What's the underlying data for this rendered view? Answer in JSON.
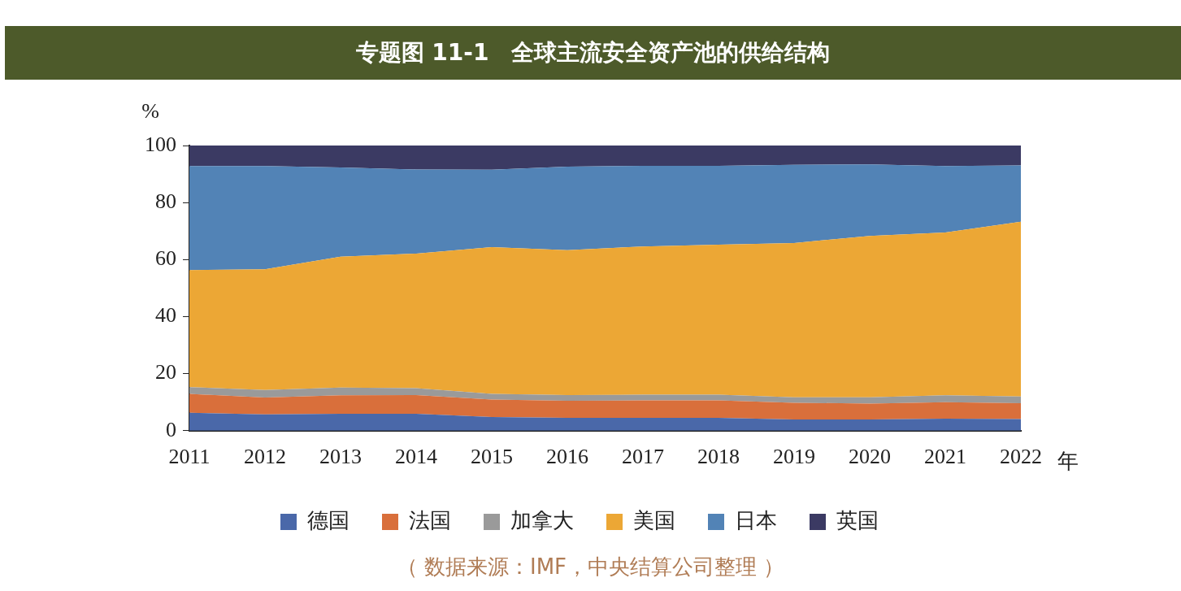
{
  "chart_data": {
    "type": "area",
    "title": "专题图 11-1　全球主流安全资产池的供给结构",
    "ylabel": "%",
    "xlabel": "年",
    "categories": [
      "2011",
      "2012",
      "2013",
      "2014",
      "2015",
      "2016",
      "2017",
      "2018",
      "2019",
      "2020",
      "2021",
      "2022"
    ],
    "stacked": true,
    "ylim": [
      0,
      100
    ],
    "yticks": [
      0,
      20,
      40,
      60,
      80,
      100
    ],
    "grid": false,
    "legend": "bottom",
    "series": [
      {
        "name": "德国",
        "color": "#4a68a9",
        "values": [
          6.3,
          5.7,
          5.9,
          5.9,
          4.8,
          4.5,
          4.5,
          4.5,
          3.9,
          3.9,
          4.2,
          4.1
        ]
      },
      {
        "name": "法国",
        "color": "#d96f3b",
        "values": [
          6.6,
          5.9,
          6.5,
          6.6,
          6.1,
          6.0,
          6.1,
          6.1,
          5.9,
          5.6,
          5.8,
          5.5
        ]
      },
      {
        "name": "加拿大",
        "color": "#9a9a9a",
        "values": [
          2.4,
          2.7,
          2.7,
          2.4,
          2.0,
          2.0,
          2.0,
          2.0,
          1.9,
          2.2,
          2.4,
          2.4
        ]
      },
      {
        "name": "美国",
        "color": "#eca735",
        "values": [
          41.0,
          42.3,
          45.9,
          47.2,
          51.5,
          50.8,
          52.0,
          52.6,
          54.1,
          56.6,
          57.1,
          61.3
        ]
      },
      {
        "name": "日本",
        "color": "#5283b6",
        "values": [
          36.5,
          36.2,
          31.3,
          29.5,
          27.1,
          29.3,
          28.3,
          27.7,
          27.4,
          25.1,
          23.3,
          19.7
        ]
      },
      {
        "name": "英国",
        "color": "#3b3a63",
        "values": [
          7.2,
          7.2,
          7.7,
          8.4,
          8.5,
          7.4,
          7.1,
          7.1,
          6.8,
          6.6,
          7.2,
          7.0
        ]
      }
    ],
    "annotations": [
      "（ 数据来源：IMF，中央结算公司整理 ）"
    ]
  }
}
